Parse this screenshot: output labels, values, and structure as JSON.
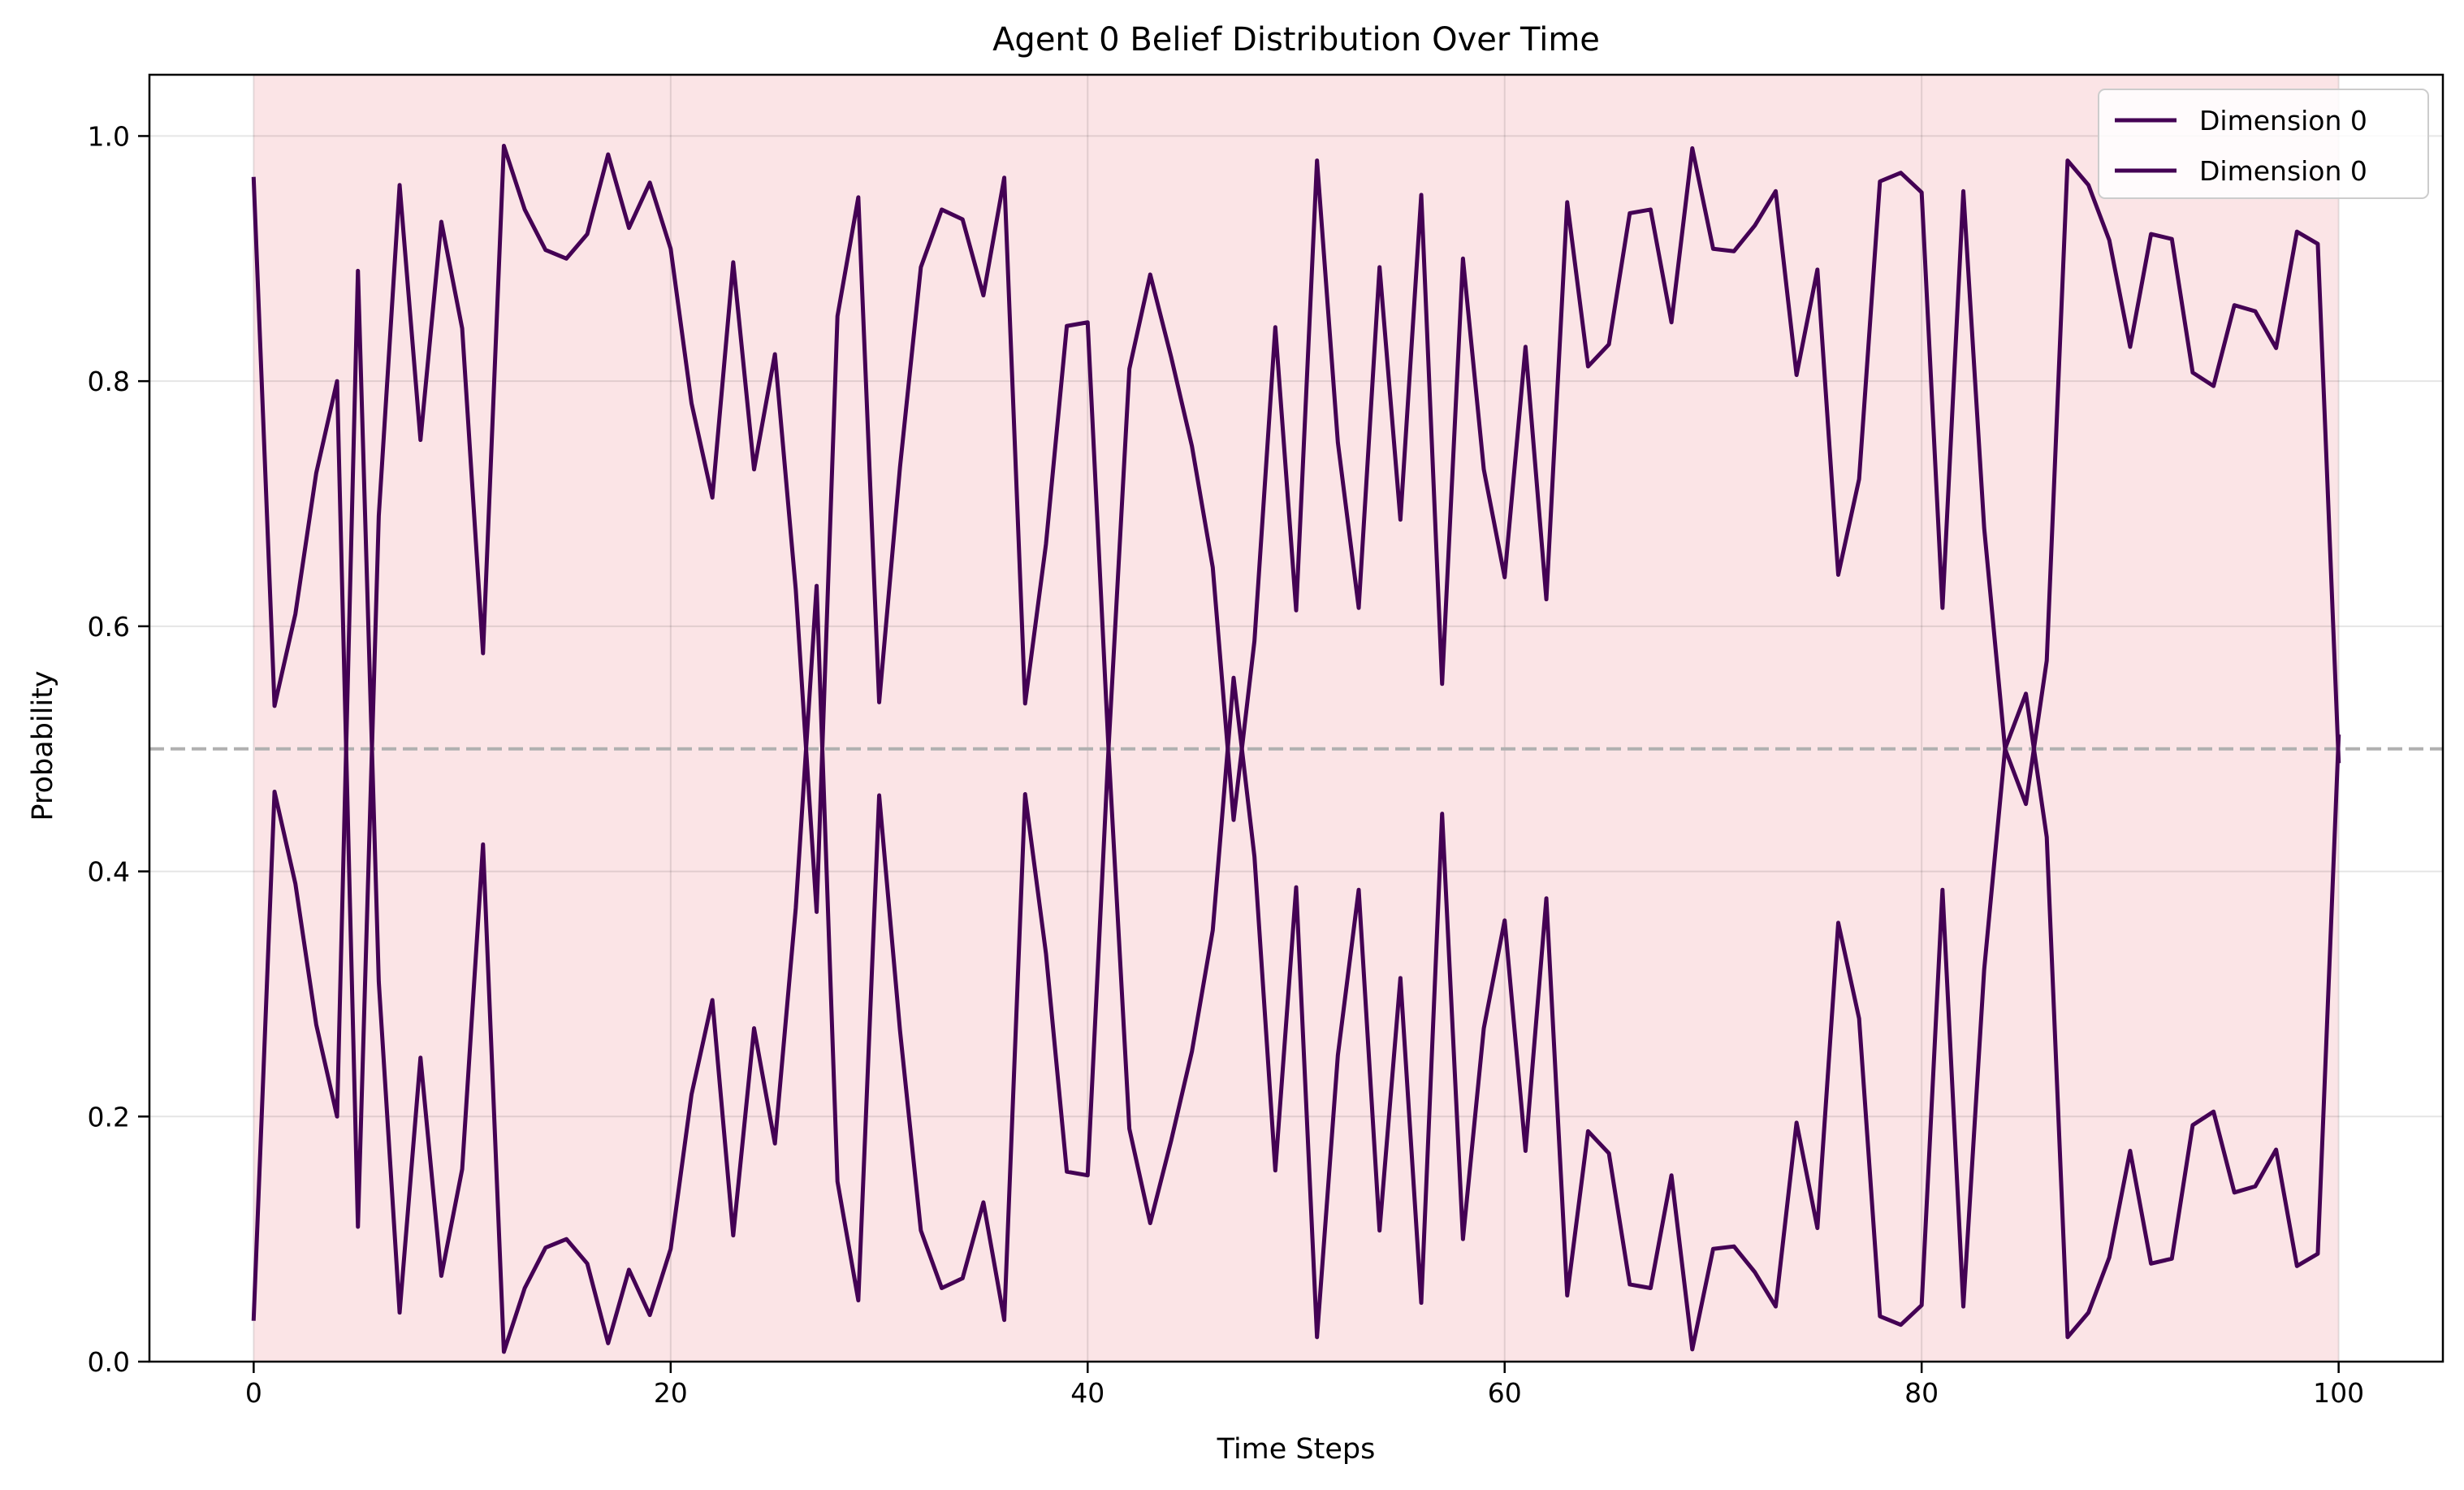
{
  "chart_data": {
    "type": "line",
    "title": "Agent 0 Belief Distribution Over Time",
    "xlabel": "Time Steps",
    "ylabel": "Probability",
    "xlim": [
      -5,
      105
    ],
    "ylim": [
      0.0,
      1.05
    ],
    "x_ticks": [
      0,
      20,
      40,
      60,
      80,
      100
    ],
    "y_ticks": [
      0.0,
      0.2,
      0.4,
      0.6,
      0.8,
      1.0
    ],
    "x_tick_labels": [
      "0",
      "20",
      "40",
      "60",
      "80",
      "100"
    ],
    "y_tick_labels": [
      "0.0",
      "0.2",
      "0.4",
      "0.6",
      "0.8",
      "1.0"
    ],
    "grid": true,
    "legend_position": "top-right",
    "reference_line": {
      "y": 0.5,
      "style": "dashed",
      "color": "#b0b0b0"
    },
    "shaded_region": {
      "x": [
        0,
        100
      ],
      "color": "#fbe4e6"
    },
    "x_step": 1,
    "series": [
      {
        "name": "Dimension 0",
        "color": "#440154",
        "values": [
          0.965,
          0.535,
          0.61,
          0.725,
          0.8,
          0.11,
          0.69,
          0.96,
          0.752,
          0.93,
          0.843,
          0.578,
          0.992,
          0.94,
          0.907,
          0.9,
          0.92,
          0.985,
          0.925,
          0.962,
          0.908,
          0.782,
          0.705,
          0.897,
          0.728,
          0.822,
          0.63,
          0.367,
          0.853,
          0.95,
          0.538,
          0.73,
          0.893,
          0.94,
          0.932,
          0.87,
          0.966,
          0.537,
          0.667,
          0.845,
          0.848,
          0.5,
          0.81,
          0.887,
          0.82,
          0.747,
          0.648,
          0.442,
          0.588,
          0.844,
          0.613,
          0.98,
          0.75,
          0.615,
          0.893,
          0.687,
          0.952,
          0.553,
          0.9,
          0.728,
          0.64,
          0.828,
          0.622,
          0.946,
          0.812,
          0.83,
          0.937,
          0.94,
          0.848,
          0.99,
          0.908,
          0.906,
          0.927,
          0.955,
          0.805,
          0.891,
          0.642,
          0.72,
          0.963,
          0.97,
          0.954,
          0.615,
          0.955,
          0.68,
          0.5,
          0.455,
          0.572,
          0.98,
          0.96,
          0.915,
          0.828,
          0.92,
          0.916,
          0.807,
          0.796,
          0.862,
          0.857,
          0.827,
          0.922,
          0.912,
          0.49
        ]
      },
      {
        "name": "Dimension 0",
        "color": "#440154",
        "values": [
          0.035,
          0.465,
          0.39,
          0.275,
          0.2,
          0.89,
          0.31,
          0.04,
          0.248,
          0.07,
          0.157,
          0.422,
          0.008,
          0.06,
          0.093,
          0.1,
          0.08,
          0.015,
          0.075,
          0.038,
          0.092,
          0.218,
          0.295,
          0.103,
          0.272,
          0.178,
          0.37,
          0.633,
          0.147,
          0.05,
          0.462,
          0.27,
          0.107,
          0.06,
          0.068,
          0.13,
          0.034,
          0.463,
          0.333,
          0.155,
          0.152,
          0.5,
          0.19,
          0.113,
          0.18,
          0.253,
          0.352,
          0.558,
          0.412,
          0.156,
          0.387,
          0.02,
          0.25,
          0.385,
          0.107,
          0.313,
          0.048,
          0.447,
          0.1,
          0.272,
          0.36,
          0.172,
          0.378,
          0.054,
          0.188,
          0.17,
          0.063,
          0.06,
          0.152,
          0.01,
          0.092,
          0.094,
          0.073,
          0.045,
          0.195,
          0.109,
          0.358,
          0.28,
          0.037,
          0.03,
          0.046,
          0.385,
          0.045,
          0.32,
          0.5,
          0.545,
          0.428,
          0.02,
          0.04,
          0.085,
          0.172,
          0.08,
          0.084,
          0.193,
          0.204,
          0.138,
          0.143,
          0.173,
          0.078,
          0.088,
          0.51
        ]
      }
    ]
  }
}
